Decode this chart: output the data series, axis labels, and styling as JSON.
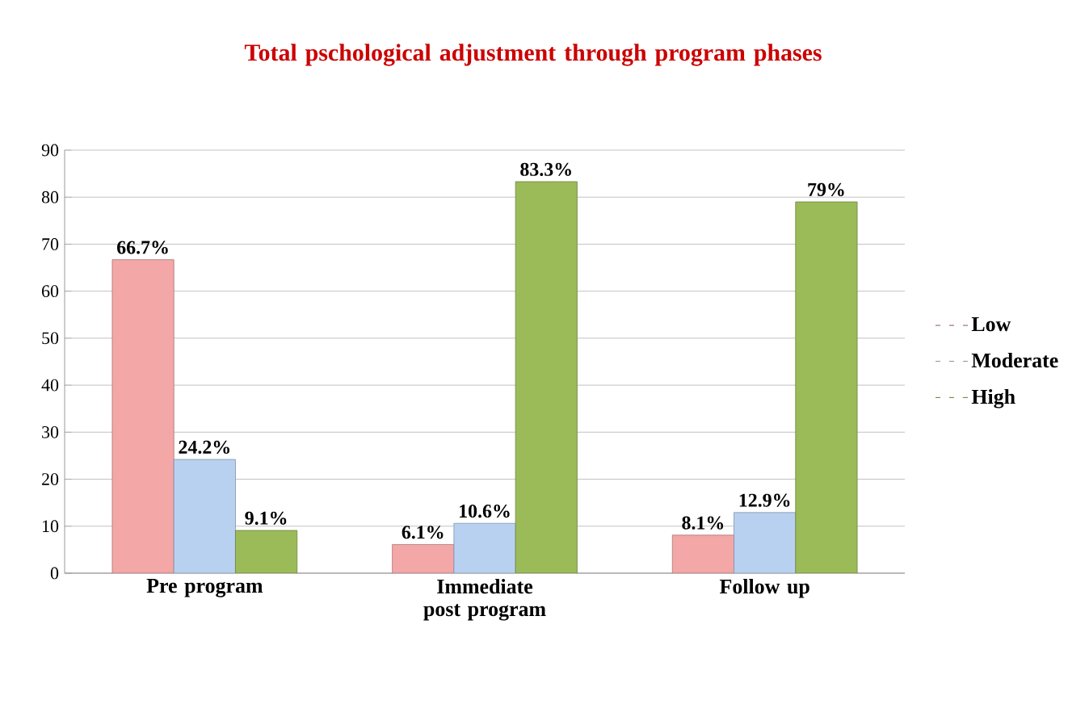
{
  "chart_data": {
    "type": "bar",
    "title": "Total pschological adjustment through program phases",
    "categories": [
      "Pre program",
      "Immediate post program",
      "Follow up"
    ],
    "series": [
      {
        "name": "Low",
        "color": "#f4a7a7",
        "values": [
          66.7,
          6.1,
          8.1
        ],
        "value_labels": [
          "66.7%",
          "6.1%",
          "8.1%"
        ]
      },
      {
        "name": "Moderate",
        "color": "#b9d1f1",
        "values": [
          24.2,
          10.6,
          12.9
        ],
        "value_labels": [
          "24.2%",
          "10.6%",
          "12.9%"
        ]
      },
      {
        "name": "High",
        "color": "#9bbb59",
        "values": [
          9.1,
          83.3,
          79
        ],
        "value_labels": [
          "9.1%",
          "83.3%",
          "79%"
        ]
      }
    ],
    "ylim": [
      0,
      90
    ],
    "yticks": [
      0,
      10,
      20,
      30,
      40,
      50,
      60,
      70,
      80,
      90
    ],
    "grid": "y",
    "legend": "right"
  }
}
